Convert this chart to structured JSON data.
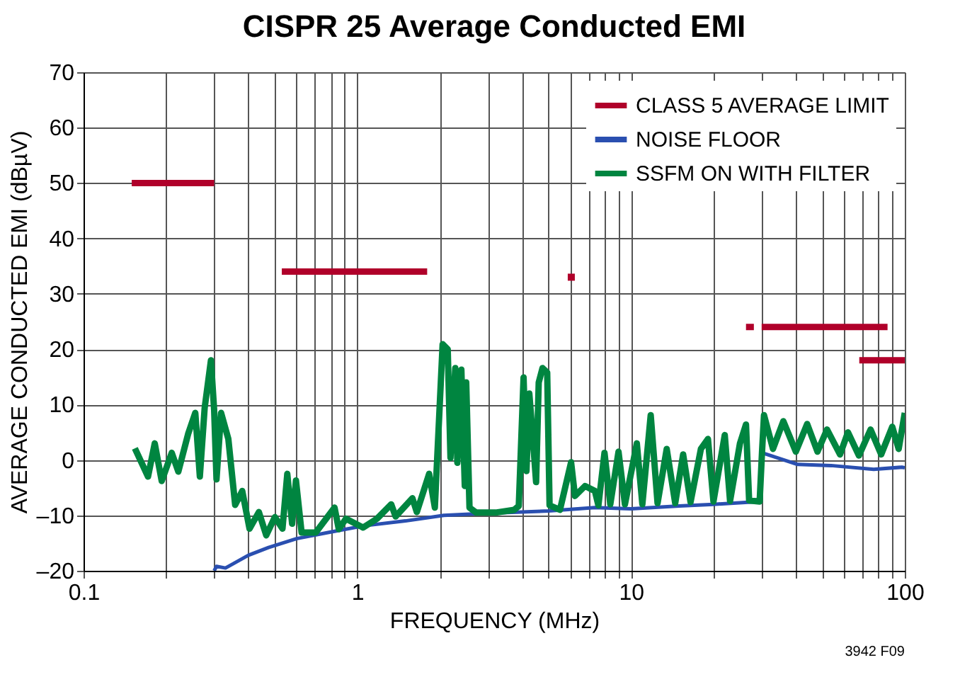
{
  "chart_data": {
    "type": "line",
    "title": "CISPR 25 Average Conducted EMI",
    "xlabel": "FREQUENCY (MHz)",
    "ylabel": "AVERAGE CONDUCTED EMI (dBµV)",
    "log": "x",
    "grid": true,
    "legend": "top right",
    "xlim": [
      0.1,
      100
    ],
    "ylim": [
      -20,
      70
    ],
    "xticks": [
      0.1,
      {
        "value": 0.2,
        "label": null
      },
      {
        "value": 0.3,
        "label": null
      },
      {
        "value": 0.4,
        "label": null
      },
      {
        "value": 0.5,
        "label": null
      },
      {
        "value": 0.6,
        "label": null
      },
      {
        "value": 0.7,
        "label": null
      },
      {
        "value": 0.8,
        "label": null
      },
      {
        "value": 0.9,
        "label": null
      },
      1,
      {
        "value": 2,
        "label": null
      },
      {
        "value": 3,
        "label": null
      },
      {
        "value": 4,
        "label": null
      },
      {
        "value": 5,
        "label": null
      },
      {
        "value": 6,
        "label": null
      },
      {
        "value": 7,
        "label": null
      },
      {
        "value": 8,
        "label": null
      },
      {
        "value": 9,
        "label": null
      },
      10,
      {
        "value": 20,
        "label": null
      },
      {
        "value": 30,
        "label": null
      },
      {
        "value": 40,
        "label": null
      },
      {
        "value": 50,
        "label": null
      },
      {
        "value": 60,
        "label": null
      },
      {
        "value": 70,
        "label": null
      },
      {
        "value": 80,
        "label": null
      },
      {
        "value": 90,
        "label": null
      },
      100
    ],
    "yticks": [
      {
        "value": -20,
        "label": "–20"
      },
      {
        "value": -10,
        "label": "–10"
      },
      0,
      10,
      20,
      30,
      40,
      50,
      60,
      70
    ],
    "annotations": [
      "3942 F09"
    ],
    "series": [
      {
        "name": "CLASS 5 AVERAGE LIMIT",
        "color": "#b0002a",
        "x": [
          0.15,
          0.3,
          null,
          0.53,
          1.8,
          null,
          26.3,
          28.1,
          null,
          30,
          86.5,
          null,
          68.2,
          100
        ],
        "values": [
          50,
          50,
          null,
          34,
          34,
          null,
          24,
          24,
          null,
          24,
          24,
          null,
          18,
          18
        ]
      },
      {
        "type": "scatter",
        "marker": "square",
        "color": "#b0002a",
        "x": [
          6.05
        ],
        "values": [
          33
        ]
      },
      {
        "name": "NOISE FLOOR",
        "color": "#2a4fb0",
        "x": [
          0.3,
          0.306,
          0.33,
          0.4,
          0.474,
          0.6,
          0.8,
          1.05,
          1.5,
          2.07,
          3,
          5,
          7.38,
          10,
          15,
          20,
          29.5,
          30.1,
          40.6,
          53.8,
          77,
          97.6,
          100
        ],
        "values": [
          -20,
          -19.2,
          -19.5,
          -17.2,
          -15.8,
          -14.2,
          -13,
          -11.9,
          -11,
          -10,
          -9.6,
          -9.2,
          -8.6,
          -8.8,
          -8.3,
          -8,
          -7.5,
          1.3,
          -0.8,
          -1,
          -1.7,
          -1.3,
          -1.4
        ]
      },
      {
        "name": "SSFM ON WITH FILTER",
        "color": "#008540",
        "x": [
          0.154,
          0.172,
          0.182,
          0.193,
          0.21,
          0.222,
          0.241,
          0.256,
          0.266,
          0.277,
          0.292,
          0.3,
          0.306,
          0.318,
          0.338,
          0.358,
          0.38,
          0.404,
          0.437,
          0.465,
          0.5,
          0.533,
          0.555,
          0.578,
          0.597,
          0.626,
          0.705,
          0.826,
          0.856,
          0.909,
          1.05,
          1.18,
          1.33,
          1.38,
          1.59,
          1.65,
          1.83,
          1.92,
          2.05,
          2.14,
          2.19,
          2.28,
          2.32,
          2.4,
          2.47,
          2.5,
          2.57,
          2.72,
          3.2,
          3.74,
          3.89,
          4.05,
          4.15,
          4.25,
          4.38,
          4.5,
          4.6,
          4.75,
          4.94,
          5.04,
          5.5,
          6.04,
          6.24,
          6.79,
          7.38,
          7.6,
          8.0,
          8.4,
          9.0,
          9.5,
          10.5,
          11.0,
          11.8,
          12.5,
          13.5,
          14.5,
          15.5,
          16.5,
          18,
          19.1,
          20,
          22,
          23,
          25,
          26.3,
          27,
          29.5,
          30.1,
          30.6,
          33,
          36,
          40,
          44,
          48,
          52,
          58,
          62,
          68,
          75,
          82,
          90,
          95,
          100
        ],
        "values": [
          2.1,
          -3,
          3,
          -3.8,
          1.3,
          -2.1,
          4.7,
          8.5,
          -3,
          9.4,
          18,
          9,
          -3.5,
          8.5,
          3.8,
          -8.1,
          -5.6,
          -12.4,
          -9.4,
          -13.6,
          -10.3,
          -12.4,
          -2.5,
          -11.5,
          -3.7,
          -13.1,
          -13.1,
          -8.6,
          -12.5,
          -10.6,
          -12.2,
          -10.6,
          -8,
          -10.2,
          -6.9,
          -9.4,
          -2.5,
          -8.6,
          20.9,
          20,
          0.4,
          16.6,
          -0.5,
          16.3,
          -4.7,
          14,
          -8.6,
          -9.5,
          -9.5,
          -9,
          -8.3,
          14.9,
          -2,
          12,
          3.8,
          -4,
          14,
          16.6,
          15.8,
          -8.2,
          -9,
          -0.4,
          -6.5,
          -4.7,
          -5.6,
          -8.2,
          1.3,
          -8,
          1.5,
          -8,
          3,
          -8,
          8.1,
          -7.8,
          2,
          -7.8,
          1,
          -7.6,
          2,
          3.8,
          -7.5,
          4.5,
          -7.4,
          3,
          6.4,
          -7.3,
          -7.5,
          1.5,
          8.1,
          2,
          7,
          1.5,
          6.5,
          1.5,
          5.5,
          1,
          5,
          0.8,
          5.5,
          1,
          6,
          2,
          8.5
        ]
      }
    ]
  }
}
